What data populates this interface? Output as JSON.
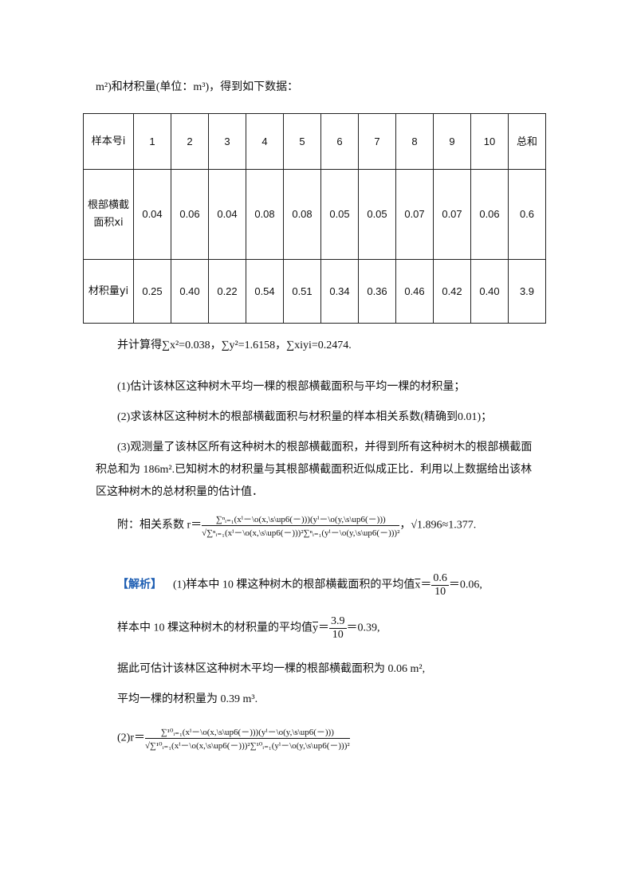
{
  "intro": "m²)和材积量(单位：m³)，得到如下数据：",
  "table": {
    "header": [
      "样本号i",
      "1",
      "2",
      "3",
      "4",
      "5",
      "6",
      "7",
      "8",
      "9",
      "10",
      "总和"
    ],
    "rows": [
      {
        "label": "根部横截面积xi",
        "values": [
          "0.04",
          "0.06",
          "0.04",
          "0.08",
          "0.08",
          "0.05",
          "0.05",
          "0.07",
          "0.07",
          "0.06",
          "0.6"
        ]
      },
      {
        "label": "材积量yi",
        "values": [
          "0.25",
          "0.40",
          "0.22",
          "0.54",
          "0.51",
          "0.34",
          "0.36",
          "0.46",
          "0.42",
          "0.40",
          "3.9"
        ]
      }
    ]
  },
  "sums": "并计算得∑x²=0.038，∑y²=1.6158，∑xiyi=0.2474.",
  "q1": "(1)估计该林区这种树木平均一棵的根部横截面积与平均一棵的材积量；",
  "q2": "(2)求该林区这种树木的根部横截面积与材积量的样本相关系数(精确到0.01)；",
  "q3a": "(3)观测量了该林区所有这种树木的根部横截面积，并得到所有这种树木的根部横截面",
  "q3b": "积总和为 186m².已知树木的材积量与其根部横截面积近似成正比．利用以上数据给出该林",
  "q3c": "区这种树木的总材积量的估计值．",
  "note_prefix": "附：相关系数 r＝",
  "note_num": "∑ⁿᵢ₌₁(xⁱ－\\o(x,\\s\\up6(－)))(yⁱ－\\o(y,\\s\\up6(－)))",
  "note_den": "√∑ⁿᵢ₌₁(xⁱ－\\o(x,\\s\\up6(－)))²∑ⁿᵢ₌₁(yⁱ－\\o(y,\\s\\up6(－)))²",
  "note_suffix": "，√1.896≈1.377.",
  "analysis_label": "【解析】",
  "a1": "(1)样本中 10 棵这种树木的根部横截面积的平均值",
  "a1_var": "x",
  "a1_num": "0.6",
  "a1_den": "10",
  "a1_res": "＝0.06,",
  "a2": "样本中 10 棵这种树木的材积量的平均值",
  "a2_var": "y",
  "a2_num": "3.9",
  "a2_den": "10",
  "a2_res": "＝0.39,",
  "a3": "据此可估计该林区这种树木平均一棵的根部横截面积为 0.06 m²,",
  "a4": "平均一棵的材积量为 0.39 m³.",
  "a5_prefix": "(2)r＝",
  "a5_num": "∑¹⁰ᵢ₌₁(xⁱ－\\o(x,\\s\\up6(－)))(yⁱ－\\o(y,\\s\\up6(－)))",
  "a5_den": "√∑¹⁰ᵢ₌₁(xⁱ－\\o(x,\\s\\up6(－)))²∑¹⁰ᵢ₌₁(yⁱ－\\o(y,\\s\\up6(－)))²",
  "accent": "#1f5fb3"
}
